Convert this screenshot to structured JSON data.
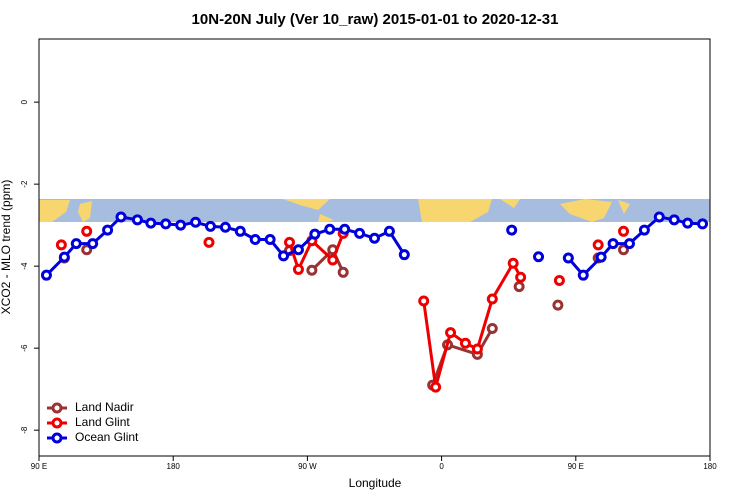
{
  "chart_data": {
    "type": "line",
    "title": "10N-20N July (Ver 10_raw)   2015-01-01 to 2020-12-31",
    "xlabel": "Longitude",
    "ylabel": "XCO2 - MLO trend (ppm)",
    "xlim": [
      90,
      540
    ],
    "ylim": [
      -8.63,
      1.54
    ],
    "xticks": [
      {
        "value": 90,
        "label": "90 E"
      },
      {
        "value": 180,
        "label": "180"
      },
      {
        "value": 270,
        "label": "90 W"
      },
      {
        "value": 360,
        "label": "0"
      },
      {
        "value": 450,
        "label": "90 E"
      },
      {
        "value": 540,
        "label": "180"
      }
    ],
    "yticks": [
      0,
      -2,
      -4,
      -6,
      -8
    ],
    "legend": "bottom-left",
    "series": [
      {
        "name": "Land Nadir",
        "color": "#993333",
        "x": [
          107,
          null,
          122,
          null,
          258,
          null,
          273,
          287,
          294,
          null,
          354,
          364,
          384,
          394,
          null,
          412,
          null,
          438,
          null,
          465,
          null,
          482
        ],
        "values": [
          -3.8,
          null,
          -3.6,
          null,
          -3.62,
          null,
          -4.1,
          -3.6,
          -4.15,
          null,
          -6.9,
          -5.92,
          -6.15,
          -5.52,
          null,
          -4.5,
          null,
          -4.95,
          null,
          -3.8,
          null,
          -3.6
        ]
      },
      {
        "name": "Land Glint",
        "color": "#ee0000",
        "x": [
          105,
          null,
          122,
          null,
          204,
          null,
          258,
          264,
          273,
          287,
          294,
          null,
          348,
          356,
          366,
          376,
          384,
          394,
          408,
          413,
          null,
          439,
          null,
          465,
          null,
          482
        ],
        "values": [
          -3.48,
          null,
          -3.15,
          null,
          -3.42,
          null,
          -3.42,
          -4.08,
          -3.38,
          -3.85,
          -3.2,
          null,
          -4.85,
          -6.95,
          -5.62,
          -5.88,
          -6.02,
          -4.8,
          -3.93,
          -4.27,
          null,
          -4.35,
          null,
          -3.48,
          null,
          -3.15
        ]
      },
      {
        "name": "Ocean Glint",
        "color": "#0000dd",
        "x": [
          95,
          107,
          115,
          126,
          136,
          145,
          156,
          165,
          175,
          185,
          195,
          205,
          215,
          225,
          235,
          245,
          254,
          264,
          275,
          285,
          295,
          305,
          315,
          325,
          335,
          null,
          407,
          null,
          425,
          null,
          445,
          455,
          467,
          475,
          486,
          496,
          506,
          516,
          525,
          535
        ],
        "values": [
          -4.22,
          -3.78,
          -3.45,
          -3.45,
          -3.12,
          -2.8,
          -2.87,
          -2.95,
          -2.97,
          -3.0,
          -2.93,
          -3.03,
          -3.05,
          -3.15,
          -3.35,
          -3.35,
          -3.75,
          -3.6,
          -3.22,
          -3.1,
          -3.1,
          -3.2,
          -3.32,
          -3.15,
          -3.72,
          null,
          -3.12,
          null,
          -3.77,
          null,
          -3.8,
          -4.22,
          -3.78,
          -3.45,
          -3.45,
          -3.12,
          -2.8,
          -2.87,
          -2.95,
          -2.97
        ]
      }
    ]
  }
}
